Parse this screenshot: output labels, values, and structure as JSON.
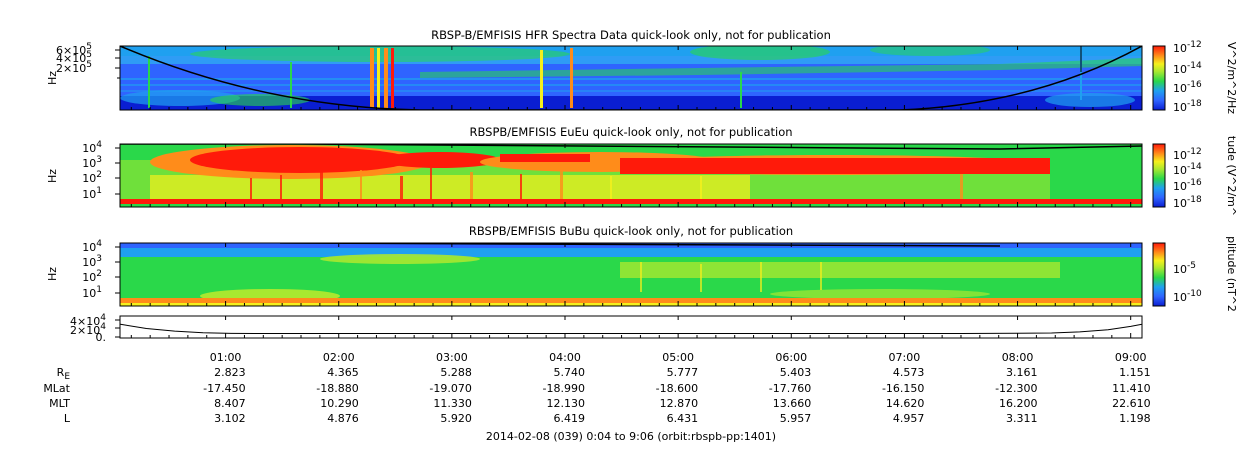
{
  "chart_data": [
    {
      "type": "heatmap",
      "title": "RBSP-B/EMFISIS  HFR Spectra Data quick-look only, not for publication",
      "ylabel": "Hz",
      "y_ticks": [
        {
          "label": "6×10",
          "exp": "5"
        },
        {
          "label": "4×10",
          "exp": "5"
        },
        {
          "label": "2×10",
          "exp": "5"
        }
      ],
      "colorbar_label": "V^2/m^2/Hz",
      "colorbar_ticks": [
        {
          "label": "10",
          "exp": "-12"
        },
        {
          "label": "10",
          "exp": "-14"
        },
        {
          "label": "10",
          "exp": "-16"
        },
        {
          "label": "10",
          "exp": "-18"
        }
      ]
    },
    {
      "type": "heatmap",
      "title": "RBSPB/EMFISIS  EuEu quick-look only, not for publication",
      "ylabel": "Hz",
      "y_ticks": [
        {
          "label": "10",
          "exp": "4"
        },
        {
          "label": "10",
          "exp": "3"
        },
        {
          "label": "10",
          "exp": "2"
        },
        {
          "label": "10",
          "exp": "1"
        }
      ],
      "colorbar_label": "tude (V^2/m^",
      "colorbar_ticks": [
        {
          "label": "10",
          "exp": "-12"
        },
        {
          "label": "10",
          "exp": "-14"
        },
        {
          "label": "10",
          "exp": "-16"
        },
        {
          "label": "10",
          "exp": "-18"
        }
      ]
    },
    {
      "type": "heatmap",
      "title": "RBSPB/EMFISIS  BuBu quick-look only, not for publication",
      "ylabel": "Hz",
      "y_ticks": [
        {
          "label": "10",
          "exp": "4"
        },
        {
          "label": "10",
          "exp": "3"
        },
        {
          "label": "10",
          "exp": "2"
        },
        {
          "label": "10",
          "exp": "1"
        }
      ],
      "colorbar_label": "plitude (nT^2",
      "colorbar_ticks": [
        {
          "label": "10",
          "exp": "-5"
        },
        {
          "label": "10",
          "exp": "-10"
        }
      ]
    },
    {
      "type": "line",
      "title": "",
      "y_ticks": [
        {
          "label": "4×10",
          "exp": "4"
        },
        {
          "label": "2×10",
          "exp": "4"
        },
        {
          "label": "0.",
          "exp": ""
        }
      ],
      "ylim": [
        0,
        40000
      ],
      "curve_x_hours": [
        0.07,
        0.3,
        0.55,
        0.8,
        1.05,
        1.5,
        2.0,
        3.0,
        4.0,
        5.0,
        6.0,
        7.0,
        7.5,
        8.0,
        8.3,
        8.55,
        8.8,
        9.0,
        9.1
      ],
      "curve_y": [
        30000,
        20000,
        14000,
        10000,
        8500,
        8200,
        8200,
        8200,
        8200,
        8200,
        8200,
        8200,
        8300,
        8600,
        9500,
        12000,
        17000,
        25000,
        30000
      ]
    }
  ],
  "x_axis": {
    "start_hours": 0.0667,
    "end_hours": 9.1,
    "ticks": [
      {
        "hour": 1,
        "label": "01:00"
      },
      {
        "hour": 2,
        "label": "02:00"
      },
      {
        "hour": 3,
        "label": "03:00"
      },
      {
        "hour": 4,
        "label": "04:00"
      },
      {
        "hour": 5,
        "label": "05:00"
      },
      {
        "hour": 6,
        "label": "06:00"
      },
      {
        "hour": 7,
        "label": "07:00"
      },
      {
        "hour": 8,
        "label": "08:00"
      },
      {
        "hour": 9,
        "label": "09:00"
      }
    ]
  },
  "ephemeris": {
    "rows": [
      {
        "label": "R",
        "sub": "E",
        "values": [
          "2.823",
          "4.365",
          "5.288",
          "5.740",
          "5.777",
          "5.403",
          "4.573",
          "3.161",
          "1.151"
        ]
      },
      {
        "label": "MLat",
        "sub": "",
        "values": [
          "-17.450",
          "-18.880",
          "-19.070",
          "-18.990",
          "-18.600",
          "-17.760",
          "-16.150",
          "-12.300",
          "11.410"
        ]
      },
      {
        "label": "MLT",
        "sub": "",
        "values": [
          "8.407",
          "10.290",
          "11.330",
          "12.130",
          "12.870",
          "13.660",
          "14.620",
          "16.200",
          "22.610"
        ]
      },
      {
        "label": "L",
        "sub": "",
        "values": [
          "3.102",
          "4.876",
          "5.920",
          "6.419",
          "6.431",
          "5.957",
          "4.957",
          "3.311",
          "1.198"
        ]
      }
    ]
  },
  "footer": "2014-02-08 (039) 0:04 to 9:06 (orbit:rbspb-pp:1401)",
  "colors": {
    "dark_blue": "#0a1ed2",
    "blue": "#2f64ff",
    "cyan_blue": "#1fa0f0",
    "green": "#2ad84a",
    "yellow_green": "#a8e830",
    "yellow": "#f5f01c",
    "orange": "#ff8c1a",
    "red": "#ff1a0a"
  }
}
